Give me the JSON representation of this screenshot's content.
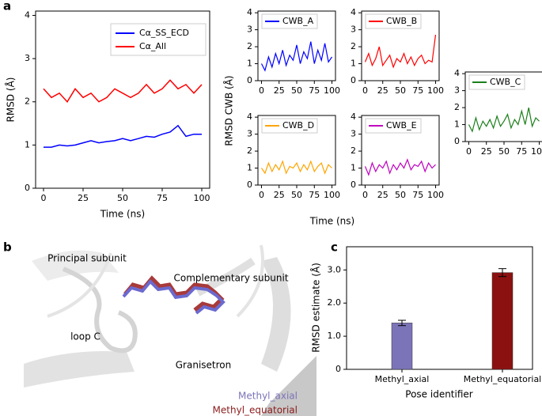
{
  "chart_data": [
    {
      "type": "line",
      "panel_label": "a",
      "x_label": "Time (ns)",
      "y_label": "RMSD (Å)",
      "x": [
        0,
        5,
        10,
        15,
        20,
        25,
        30,
        35,
        40,
        45,
        50,
        55,
        60,
        65,
        70,
        75,
        80,
        85,
        90,
        95,
        100
      ],
      "xlim": [
        -5,
        105
      ],
      "ylim": [
        0,
        4.1
      ],
      "xticks": [
        0,
        25,
        50,
        75,
        100
      ],
      "yticks": [
        0,
        1,
        2,
        3,
        4
      ],
      "series": [
        {
          "name": "Cα_SS_ECD",
          "color": "#0000ff",
          "values": [
            0.95,
            0.95,
            1.0,
            0.98,
            1.0,
            1.05,
            1.1,
            1.05,
            1.08,
            1.1,
            1.15,
            1.1,
            1.15,
            1.2,
            1.18,
            1.25,
            1.3,
            1.45,
            1.2,
            1.25,
            1.25
          ]
        },
        {
          "name": "Cα_All",
          "color": "#ff0000",
          "values": [
            2.3,
            2.1,
            2.2,
            2.0,
            2.3,
            2.1,
            2.2,
            2.0,
            2.1,
            2.3,
            2.2,
            2.1,
            2.2,
            2.4,
            2.2,
            2.3,
            2.5,
            2.3,
            2.4,
            2.2,
            2.4
          ]
        }
      ]
    },
    {
      "type": "line",
      "x_label": "Time (ns)",
      "y_label": "RMSD CWB (Å)",
      "x": [
        0,
        5,
        10,
        15,
        20,
        25,
        30,
        35,
        40,
        45,
        50,
        55,
        60,
        65,
        70,
        75,
        80,
        85,
        90,
        95,
        100
      ],
      "xlim": [
        -5,
        105
      ],
      "ylim": [
        0,
        4.1
      ],
      "xticks": [
        0,
        25,
        50,
        75,
        100
      ],
      "yticks": [
        0,
        1,
        2,
        3,
        4
      ],
      "panels": [
        {
          "name": "CWB_A",
          "color": "#0000ff",
          "values": [
            1.0,
            0.6,
            1.4,
            0.8,
            1.6,
            1.0,
            1.8,
            0.9,
            1.5,
            1.2,
            2.1,
            1.0,
            1.7,
            1.3,
            2.3,
            1.0,
            1.8,
            1.2,
            2.2,
            1.1,
            1.4
          ]
        },
        {
          "name": "CWB_B",
          "color": "#ff0000",
          "values": [
            1.1,
            1.6,
            0.9,
            1.3,
            2.0,
            0.9,
            1.2,
            1.5,
            0.8,
            1.3,
            1.1,
            1.6,
            1.0,
            1.4,
            0.9,
            1.3,
            1.5,
            1.0,
            1.2,
            1.1,
            2.7
          ]
        },
        {
          "name": "CWB_C",
          "color": "#1a7f1a",
          "values": [
            1.0,
            0.6,
            1.4,
            0.7,
            1.2,
            0.9,
            1.3,
            0.8,
            1.5,
            0.9,
            1.2,
            1.6,
            0.8,
            1.3,
            1.0,
            1.8,
            1.0,
            2.0,
            0.9,
            1.4,
            1.2
          ]
        },
        {
          "name": "CWB_D",
          "color": "#ffa500",
          "values": [
            1.0,
            0.7,
            1.3,
            0.8,
            1.2,
            0.9,
            1.4,
            0.7,
            1.1,
            1.0,
            1.3,
            0.8,
            1.2,
            0.9,
            1.4,
            0.8,
            1.1,
            1.3,
            0.7,
            1.2,
            1.0
          ]
        },
        {
          "name": "CWB_E",
          "color": "#bf00bf",
          "values": [
            1.1,
            0.6,
            1.3,
            0.8,
            1.2,
            1.0,
            1.4,
            0.7,
            1.2,
            0.9,
            1.3,
            1.0,
            1.5,
            0.9,
            1.2,
            1.1,
            1.4,
            0.8,
            1.3,
            1.0,
            1.2
          ]
        }
      ]
    },
    {
      "type": "bar",
      "panel_label": "c",
      "x_label": "Pose identifier",
      "y_label": "RMSD estimate (Å)",
      "categories": [
        "Methyl_axial",
        "Methyl_equatorial"
      ],
      "values": [
        1.4,
        2.92
      ],
      "errors": [
        0.08,
        0.12
      ],
      "colors": [
        "#7b74b8",
        "#8b1111"
      ],
      "ylim": [
        0,
        3.7
      ],
      "yticks": [
        0,
        {
          "value": 1,
          "label": "1.0"
        },
        {
          "value": 2,
          "label": "2.0"
        },
        {
          "value": 3,
          "label": "3.0"
        }
      ]
    }
  ],
  "figure_b": {
    "panel_label": "b",
    "labels": [
      "Principal subunit",
      "Complementary subunit",
      "loop C",
      "Granisetron"
    ],
    "legend": [
      "Methyl_axial",
      "Methyl_equatorial"
    ]
  }
}
